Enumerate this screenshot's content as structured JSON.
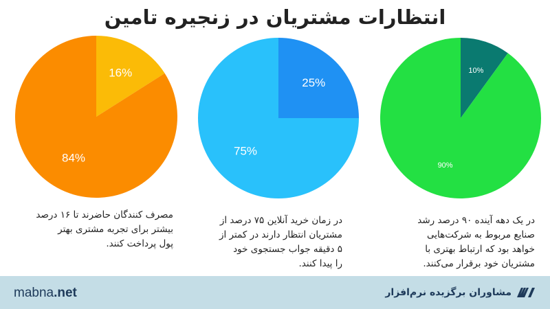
{
  "page": {
    "title": "انتظارات مشتریان در زنجیره تامین"
  },
  "chart_data": [
    {
      "type": "pie",
      "slices": [
        {
          "label": "16%",
          "value": 16,
          "color": "#fbbb07"
        },
        {
          "label": "84%",
          "value": 84,
          "color": "#fb8c00"
        }
      ],
      "caption": [
        "مصرف کنندگان حاضرند تا ۱۶ درصد",
        "بیشتر برای تجربه مشتری بهتر",
        "پول پرداخت کنند."
      ]
    },
    {
      "type": "pie",
      "slices": [
        {
          "label": "25%",
          "value": 25,
          "color": "#1f91f3"
        },
        {
          "label": "75%",
          "value": 75,
          "color": "#29c1fb"
        }
      ],
      "caption": [
        "در زمان خرید آنلاین ۷۵ درصد از",
        "مشتریان انتظار دارند در کمتر از",
        "۵ دقیقه جواب جستجوی خود",
        "را پیدا کنند."
      ]
    },
    {
      "type": "pie",
      "slices": [
        {
          "label": "10%",
          "value": 10,
          "color": "#0a7a70"
        },
        {
          "label": "90%",
          "value": 90,
          "color": "#23e043"
        }
      ],
      "caption": [
        "در یک دهه آینده ۹۰ درصد رشد",
        "صنایع مربوط به شرکت‌هایی",
        "خواهد بود که ارتباط بهتری با",
        "مشتریان خود برقرار می‌کنند."
      ]
    }
  ],
  "footer": {
    "site_name": "mabna",
    "site_tld": ".net",
    "brand_name": "مشاوران برگزیده نرم‌افزار",
    "brand_logo_icon": "mabna-logo-icon",
    "background": "#c4dde6"
  }
}
